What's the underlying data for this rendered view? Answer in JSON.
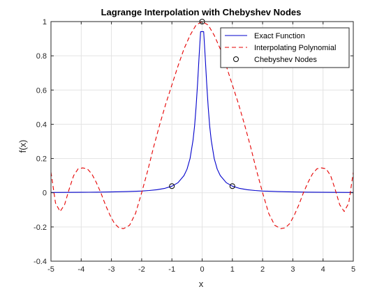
{
  "chart_data": {
    "type": "line",
    "title": "Lagrange Interpolation with Chebyshev Nodes",
    "xlabel": "x",
    "ylabel": "f(x)",
    "xlim": [
      -5,
      5
    ],
    "ylim": [
      -0.4,
      1
    ],
    "x_ticks": [
      -5,
      -4,
      -3,
      -2,
      -1,
      0,
      1,
      2,
      3,
      4,
      5
    ],
    "y_ticks": [
      -0.4,
      -0.2,
      0,
      0.2,
      0.4,
      0.6,
      0.8,
      1
    ],
    "x_tick_labels": [
      "-5",
      "-4",
      "-3",
      "-2",
      "-1",
      "0",
      "1",
      "2",
      "3",
      "4",
      "5"
    ],
    "y_tick_labels": [
      "-0.4",
      "-0.2",
      "0",
      "0.2",
      "0.4",
      "0.6",
      "0.8",
      "1"
    ],
    "grid": true,
    "legend_position": "top-right",
    "series": [
      {
        "name": "Exact Function",
        "style": "solid",
        "color": "#0000cc",
        "x": [
          -5,
          -4.5,
          -4,
          -3.5,
          -3,
          -2.5,
          -2,
          -1.75,
          -1.5,
          -1.25,
          -1,
          -0.8,
          -0.6,
          -0.5,
          -0.4,
          -0.3,
          -0.25,
          -0.2,
          -0.15,
          -0.1,
          -0.05,
          0,
          0.05,
          0.1,
          0.15,
          0.2,
          0.25,
          0.3,
          0.4,
          0.5,
          0.6,
          0.8,
          1,
          1.25,
          1.5,
          1.75,
          2,
          2.5,
          3,
          3.5,
          4,
          4.5,
          5
        ],
        "y": [
          0.0016,
          0.002,
          0.0025,
          0.0033,
          0.0044,
          0.0064,
          0.0099,
          0.0129,
          0.0175,
          0.025,
          0.0385,
          0.0588,
          0.1,
          0.1379,
          0.2,
          0.3077,
          0.3902,
          0.5,
          0.64,
          0.8,
          0.9412,
          0.9412,
          0.9412,
          0.8,
          0.64,
          0.5,
          0.3902,
          0.3077,
          0.2,
          0.1379,
          0.1,
          0.0588,
          0.0385,
          0.025,
          0.0175,
          0.0129,
          0.0099,
          0.0064,
          0.0044,
          0.0033,
          0.0025,
          0.002,
          0.0016
        ]
      },
      {
        "name": "Interpolating Polynomial",
        "style": "dashed",
        "color": "#e60000",
        "x": [
          -5,
          -4.85,
          -4.7,
          -4.55,
          -4.4,
          -4.25,
          -4.1,
          -3.95,
          -3.8,
          -3.65,
          -3.5,
          -3.35,
          -3.2,
          -3.05,
          -2.9,
          -2.75,
          -2.6,
          -2.4,
          -2.2,
          -2.0,
          -1.8,
          -1.6,
          -1.4,
          -1.2,
          -1.0,
          -0.8,
          -0.6,
          -0.4,
          -0.2,
          0,
          0.2,
          0.4,
          0.6,
          0.8,
          1.0,
          1.2,
          1.4,
          1.6,
          1.8,
          2.0,
          2.2,
          2.4,
          2.6,
          2.75,
          2.9,
          3.05,
          3.2,
          3.35,
          3.5,
          3.65,
          3.8,
          3.95,
          4.1,
          4.25,
          4.4,
          4.55,
          4.7,
          4.85,
          5
        ],
        "y": [
          0.12,
          -0.06,
          -0.11,
          -0.07,
          0.02,
          0.1,
          0.14,
          0.145,
          0.14,
          0.11,
          0.06,
          0.0,
          -0.07,
          -0.13,
          -0.18,
          -0.205,
          -0.21,
          -0.19,
          -0.12,
          0.0,
          0.13,
          0.27,
          0.4,
          0.52,
          0.63,
          0.74,
          0.84,
          0.92,
          0.98,
          1.0,
          0.98,
          0.92,
          0.84,
          0.74,
          0.63,
          0.52,
          0.4,
          0.27,
          0.13,
          0.0,
          -0.12,
          -0.19,
          -0.21,
          -0.205,
          -0.18,
          -0.13,
          -0.07,
          0.0,
          0.06,
          0.11,
          0.14,
          0.145,
          0.14,
          0.1,
          0.02,
          -0.07,
          -0.11,
          -0.06,
          0.12
        ]
      },
      {
        "name": "Chebyshev Nodes",
        "style": "markers",
        "color": "#000000",
        "x": [
          -1,
          0,
          1
        ],
        "y": [
          0.0385,
          1,
          0.0385
        ]
      }
    ]
  }
}
